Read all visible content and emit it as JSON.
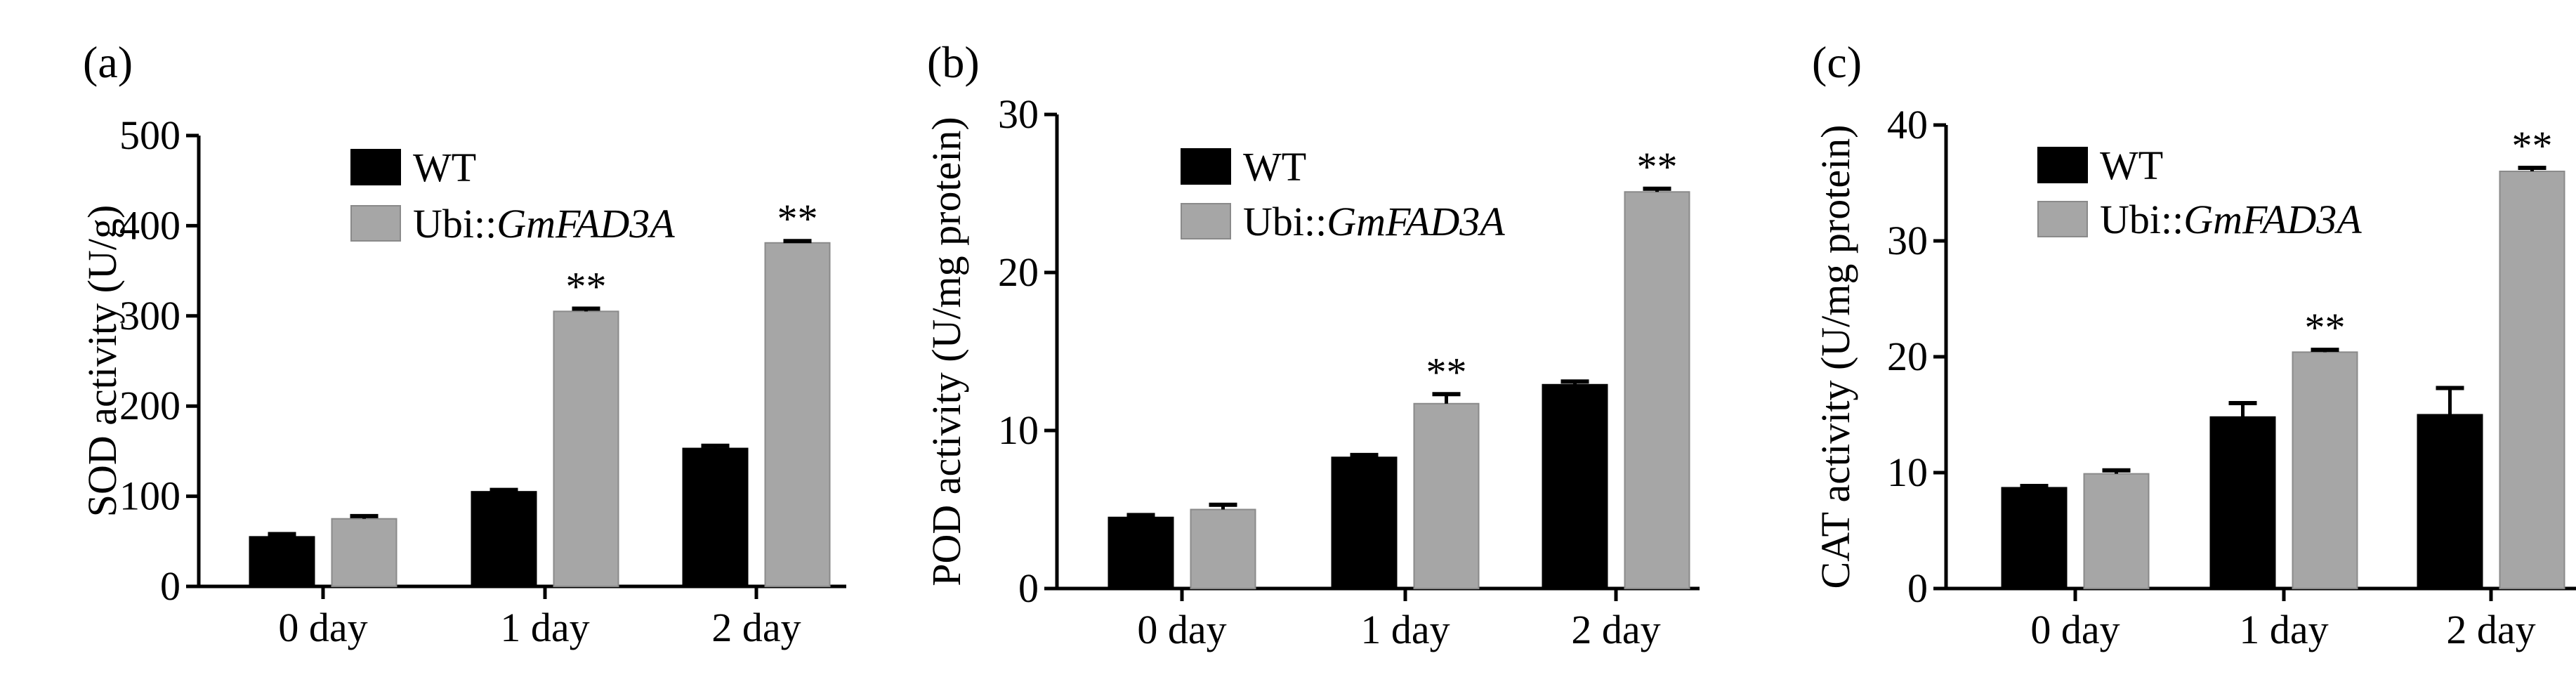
{
  "chart_data": [
    {
      "type": "bar",
      "panel_label": "(a)",
      "ylabel": "SOD activity (U/g)",
      "ylim": [
        0,
        500
      ],
      "yticks": [
        0,
        100,
        200,
        300,
        400,
        500
      ],
      "categories": [
        "0 day",
        "1 day",
        "2 day"
      ],
      "series": [
        {
          "name": "WT",
          "values": [
            55,
            105,
            153
          ],
          "errors": [
            3,
            2,
            3
          ],
          "color": "#000000"
        },
        {
          "name": "Ubi::",
          "name_italic": "GmFAD3A",
          "values": [
            75,
            305,
            381
          ],
          "errors": [
            3,
            3,
            2
          ],
          "color": "#a6a6a6"
        }
      ],
      "annotations": [
        {
          "category": "1 day",
          "series": 1,
          "text": "**"
        },
        {
          "category": "2 day",
          "series": 1,
          "text": "**"
        }
      ],
      "legend": "top-left"
    },
    {
      "type": "bar",
      "panel_label": "(b)",
      "ylabel": "POD activity (U/mg protein)",
      "ylim": [
        0,
        30
      ],
      "yticks": [
        0,
        10,
        20,
        30
      ],
      "categories": [
        "0 day",
        "1 day",
        "2 day"
      ],
      "series": [
        {
          "name": "WT",
          "values": [
            4.5,
            8.3,
            12.9
          ],
          "errors": [
            0.15,
            0.15,
            0.2
          ],
          "color": "#000000"
        },
        {
          "name": "Ubi::",
          "name_italic": "GmFAD3A",
          "values": [
            5.0,
            11.7,
            25.1
          ],
          "errors": [
            0.3,
            0.6,
            0.2
          ],
          "color": "#a6a6a6"
        }
      ],
      "annotations": [
        {
          "category": "1 day",
          "series": 1,
          "text": "**"
        },
        {
          "category": "2 day",
          "series": 1,
          "text": "**"
        }
      ],
      "legend": "top-left"
    },
    {
      "type": "bar",
      "panel_label": "(c)",
      "ylabel": "CAT activity (U/mg protein)",
      "ylim": [
        0,
        40
      ],
      "yticks": [
        0,
        10,
        20,
        30,
        40
      ],
      "categories": [
        "0 day",
        "1 day",
        "2 day"
      ],
      "series": [
        {
          "name": "WT",
          "values": [
            8.7,
            14.8,
            15.0
          ],
          "errors": [
            0.15,
            1.2,
            2.3
          ],
          "color": "#000000"
        },
        {
          "name": "Ubi::",
          "name_italic": "GmFAD3A",
          "values": [
            9.9,
            20.4,
            36.0
          ],
          "errors": [
            0.3,
            0.2,
            0.3
          ],
          "color": "#a6a6a6"
        }
      ],
      "annotations": [
        {
          "category": "1 day",
          "series": 1,
          "text": "**"
        },
        {
          "category": "2 day",
          "series": 1,
          "text": "**"
        }
      ],
      "legend": "top-left"
    }
  ]
}
